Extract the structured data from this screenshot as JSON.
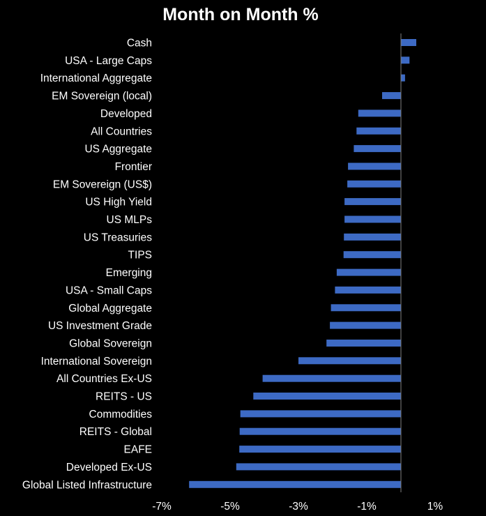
{
  "chart_data": {
    "type": "bar",
    "orientation": "horizontal",
    "title": "Month on Month %",
    "xlabel": "",
    "ylabel": "",
    "xlim": [
      -7,
      1
    ],
    "x_ticks": [
      -7,
      -5,
      -3,
      -1,
      1
    ],
    "x_tick_labels": [
      "-7%",
      "-5%",
      "-3%",
      "-1%",
      "1%"
    ],
    "grid": false,
    "legend": "none",
    "bar_color": "#3d6ac4",
    "background": "#000000",
    "categories": [
      "Cash",
      "USA - Large Caps",
      "International Aggregate",
      "EM Sovereign (local)",
      "Developed",
      "All Countries",
      "US Aggregate",
      "Frontier",
      "EM Sovereign (US$)",
      "US High Yield",
      "US MLPs",
      "US Treasuries",
      "TIPS",
      "Emerging",
      "USA - Small Caps",
      "Global Aggregate",
      "US Investment Grade",
      "Global Sovereign",
      "International Sovereign",
      "All Countries Ex-US",
      "REITS - US",
      "Commodities",
      "REITS - Global",
      "EAFE",
      "Developed Ex-US",
      "Global Listed Infrastructure"
    ],
    "values": [
      0.45,
      0.25,
      0.12,
      -0.55,
      -1.25,
      -1.3,
      -1.38,
      -1.55,
      -1.57,
      -1.65,
      -1.65,
      -1.67,
      -1.68,
      -1.88,
      -1.93,
      -2.05,
      -2.08,
      -2.18,
      -3.0,
      -4.05,
      -4.32,
      -4.7,
      -4.72,
      -4.73,
      -4.82,
      -6.2
    ]
  }
}
